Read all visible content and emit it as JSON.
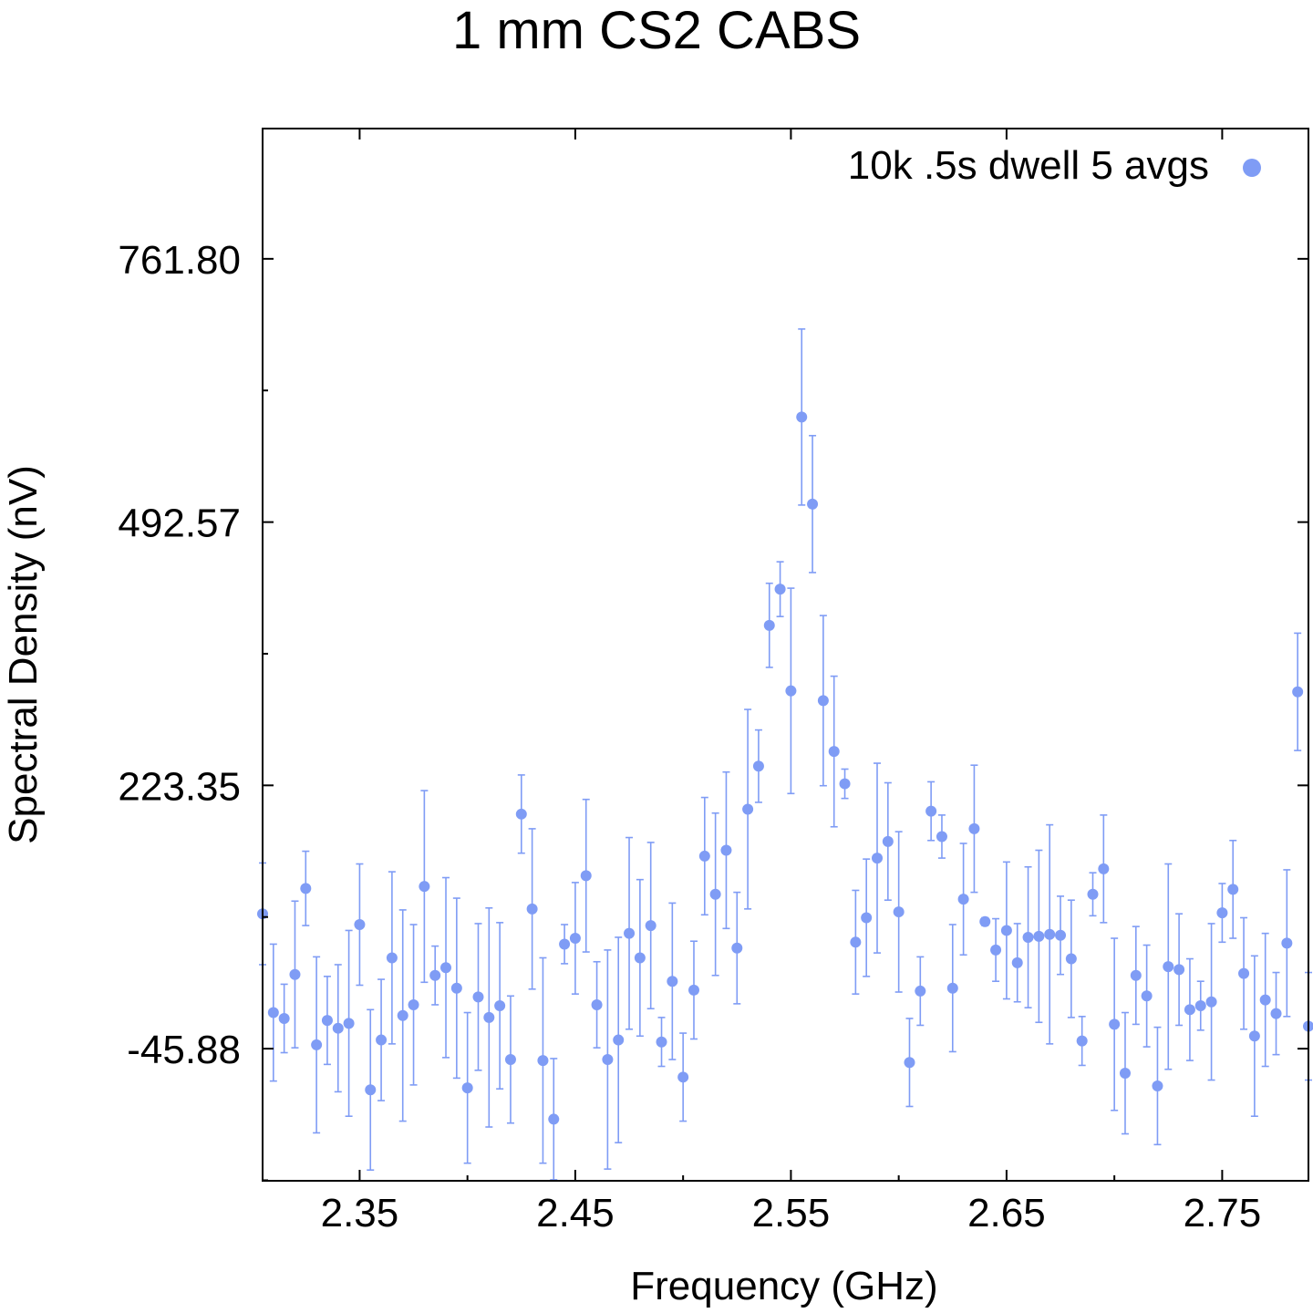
{
  "chart_data": {
    "type": "scatter",
    "title": "1 mm CS2 CABS",
    "xlabel": "Frequency (GHz)",
    "ylabel": "Spectral Density (nV)",
    "xlim": [
      2.305,
      2.79
    ],
    "ylim": [
      -181,
      895
    ],
    "xticks": [
      {
        "value": 2.35,
        "label": "2.35"
      },
      {
        "value": 2.45,
        "label": "2.45"
      },
      {
        "value": 2.55,
        "label": "2.55"
      },
      {
        "value": 2.65,
        "label": "2.65"
      },
      {
        "value": 2.75,
        "label": "2.75"
      }
    ],
    "yticks": [
      {
        "value": -45.88,
        "label": "-45.88"
      },
      {
        "value": 223.35,
        "label": "223.35"
      },
      {
        "value": 492.57,
        "label": "492.57"
      },
      {
        "value": 761.8,
        "label": "761.80"
      }
    ],
    "grid": false,
    "legend_position": "top-right",
    "color": "#7f9cf5",
    "series": [
      {
        "name": "10k .5s dwell 5 avgs",
        "points": [
          {
            "x": 2.305,
            "y": 92,
            "err": 52
          },
          {
            "x": 2.31,
            "y": -9,
            "err": 70
          },
          {
            "x": 2.315,
            "y": -15,
            "err": 35
          },
          {
            "x": 2.32,
            "y": 30,
            "err": 75
          },
          {
            "x": 2.325,
            "y": 118,
            "err": 38
          },
          {
            "x": 2.33,
            "y": -42,
            "err": 90
          },
          {
            "x": 2.335,
            "y": -17,
            "err": 45
          },
          {
            "x": 2.34,
            "y": -25,
            "err": 65
          },
          {
            "x": 2.345,
            "y": -20,
            "err": 95
          },
          {
            "x": 2.35,
            "y": 81,
            "err": 62
          },
          {
            "x": 2.355,
            "y": -88,
            "err": 82
          },
          {
            "x": 2.36,
            "y": -37,
            "err": 62
          },
          {
            "x": 2.365,
            "y": 47,
            "err": 88
          },
          {
            "x": 2.37,
            "y": -12,
            "err": 108
          },
          {
            "x": 2.375,
            "y": -1,
            "err": 82
          },
          {
            "x": 2.38,
            "y": 120,
            "err": 98
          },
          {
            "x": 2.385,
            "y": 29,
            "err": 30
          },
          {
            "x": 2.39,
            "y": 37,
            "err": 92
          },
          {
            "x": 2.395,
            "y": 16,
            "err": 92
          },
          {
            "x": 2.4,
            "y": -86,
            "err": 77
          },
          {
            "x": 2.405,
            "y": 7,
            "err": 75
          },
          {
            "x": 2.41,
            "y": -14,
            "err": 112
          },
          {
            "x": 2.415,
            "y": -2,
            "err": 85
          },
          {
            "x": 2.42,
            "y": -57,
            "err": 65
          },
          {
            "x": 2.425,
            "y": 194,
            "err": 40
          },
          {
            "x": 2.43,
            "y": 97,
            "err": 82
          },
          {
            "x": 2.435,
            "y": -58,
            "err": 105
          },
          {
            "x": 2.44,
            "y": -118,
            "err": 62
          },
          {
            "x": 2.445,
            "y": 61,
            "err": 20
          },
          {
            "x": 2.45,
            "y": 67,
            "err": 57
          },
          {
            "x": 2.455,
            "y": 131,
            "err": 78
          },
          {
            "x": 2.46,
            "y": -1,
            "err": 44
          },
          {
            "x": 2.465,
            "y": -57,
            "err": 112
          },
          {
            "x": 2.47,
            "y": -37,
            "err": 105
          },
          {
            "x": 2.475,
            "y": 72,
            "err": 98
          },
          {
            "x": 2.48,
            "y": 47,
            "err": 80
          },
          {
            "x": 2.485,
            "y": 80,
            "err": 85
          },
          {
            "x": 2.49,
            "y": -39,
            "err": 25
          },
          {
            "x": 2.495,
            "y": 23,
            "err": 80
          },
          {
            "x": 2.5,
            "y": -75,
            "err": 45
          },
          {
            "x": 2.505,
            "y": 14,
            "err": 50
          },
          {
            "x": 2.51,
            "y": 151,
            "err": 60
          },
          {
            "x": 2.515,
            "y": 112,
            "err": 83
          },
          {
            "x": 2.52,
            "y": 157,
            "err": 80
          },
          {
            "x": 2.525,
            "y": 57,
            "err": 57
          },
          {
            "x": 2.53,
            "y": 199,
            "err": 102
          },
          {
            "x": 2.535,
            "y": 243,
            "err": 37
          },
          {
            "x": 2.54,
            "y": 387,
            "err": 43
          },
          {
            "x": 2.545,
            "y": 424,
            "err": 28
          },
          {
            "x": 2.55,
            "y": 320,
            "err": 105
          },
          {
            "x": 2.555,
            "y": 600,
            "err": 90
          },
          {
            "x": 2.56,
            "y": 511,
            "err": 70
          },
          {
            "x": 2.565,
            "y": 310,
            "err": 87
          },
          {
            "x": 2.57,
            "y": 258,
            "err": 77
          },
          {
            "x": 2.575,
            "y": 225,
            "err": 15
          },
          {
            "x": 2.58,
            "y": 63,
            "err": 53
          },
          {
            "x": 2.585,
            "y": 88,
            "err": 60
          },
          {
            "x": 2.59,
            "y": 149,
            "err": 97
          },
          {
            "x": 2.595,
            "y": 166,
            "err": 60
          },
          {
            "x": 2.6,
            "y": 94,
            "err": 82
          },
          {
            "x": 2.605,
            "y": -60,
            "err": 45
          },
          {
            "x": 2.61,
            "y": 13,
            "err": 35
          },
          {
            "x": 2.615,
            "y": 197,
            "err": 30
          },
          {
            "x": 2.62,
            "y": 171,
            "err": 22
          },
          {
            "x": 2.625,
            "y": 16,
            "err": 65
          },
          {
            "x": 2.63,
            "y": 107,
            "err": 57
          },
          {
            "x": 2.635,
            "y": 179,
            "err": 65
          },
          {
            "x": 2.64,
            "y": 84,
            "err": 4
          },
          {
            "x": 2.645,
            "y": 55,
            "err": 32
          },
          {
            "x": 2.65,
            "y": 75,
            "err": 70
          },
          {
            "x": 2.655,
            "y": 42,
            "err": 40
          },
          {
            "x": 2.66,
            "y": 68,
            "err": 72
          },
          {
            "x": 2.665,
            "y": 69,
            "err": 88
          },
          {
            "x": 2.67,
            "y": 71,
            "err": 112
          },
          {
            "x": 2.675,
            "y": 70,
            "err": 40
          },
          {
            "x": 2.68,
            "y": 46,
            "err": 60
          },
          {
            "x": 2.685,
            "y": -38,
            "err": 25
          },
          {
            "x": 2.69,
            "y": 112,
            "err": 22
          },
          {
            "x": 2.695,
            "y": 138,
            "err": 55
          },
          {
            "x": 2.7,
            "y": -21,
            "err": 88
          },
          {
            "x": 2.705,
            "y": -71,
            "err": 62
          },
          {
            "x": 2.71,
            "y": 29,
            "err": 50
          },
          {
            "x": 2.715,
            "y": 8,
            "err": 52
          },
          {
            "x": 2.72,
            "y": -84,
            "err": 60
          },
          {
            "x": 2.725,
            "y": 38,
            "err": 105
          },
          {
            "x": 2.73,
            "y": 35,
            "err": 57
          },
          {
            "x": 2.735,
            "y": -6,
            "err": 52
          },
          {
            "x": 2.74,
            "y": -2,
            "err": 25
          },
          {
            "x": 2.745,
            "y": 2,
            "err": 80
          },
          {
            "x": 2.75,
            "y": 93,
            "err": 30
          },
          {
            "x": 2.755,
            "y": 117,
            "err": 50
          },
          {
            "x": 2.76,
            "y": 31,
            "err": 57
          },
          {
            "x": 2.765,
            "y": -33,
            "err": 82
          },
          {
            "x": 2.77,
            "y": 4,
            "err": 68
          },
          {
            "x": 2.775,
            "y": -10,
            "err": 42
          },
          {
            "x": 2.78,
            "y": 62,
            "err": 75
          },
          {
            "x": 2.785,
            "y": 319,
            "err": 60
          },
          {
            "x": 2.79,
            "y": -23,
            "err": 55
          }
        ]
      }
    ]
  }
}
